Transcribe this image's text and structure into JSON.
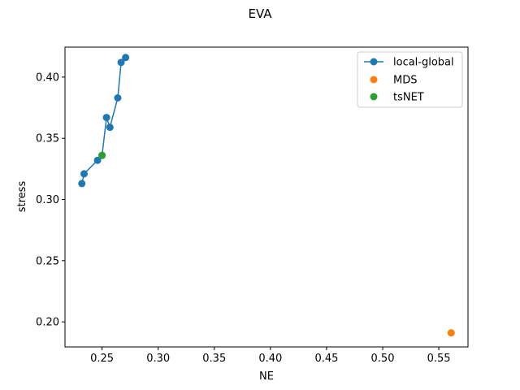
{
  "chart_data": {
    "type": "scatter",
    "title": "EVA",
    "xlabel": "NE",
    "ylabel": "stress",
    "xlim": [
      0.217,
      0.576
    ],
    "ylim": [
      0.1795,
      0.4245
    ],
    "xticks": [
      0.25,
      0.3,
      0.35,
      0.4,
      0.45,
      0.5,
      0.55
    ],
    "xtick_labels": [
      "0.25",
      "0.30",
      "0.35",
      "0.40",
      "0.45",
      "0.50",
      "0.55"
    ],
    "yticks": [
      0.2,
      0.25,
      0.3,
      0.35,
      0.4
    ],
    "ytick_labels": [
      "0.20",
      "0.25",
      "0.30",
      "0.35",
      "0.40"
    ],
    "grid": false,
    "legend_position": "top-right",
    "series": [
      {
        "name": "local-global",
        "mode": "line+markers",
        "color": "#1f77b4",
        "x": [
          0.232,
          0.234,
          0.246,
          0.25,
          0.254,
          0.257,
          0.264,
          0.267,
          0.271
        ],
        "y": [
          0.313,
          0.321,
          0.332,
          0.336,
          0.367,
          0.359,
          0.383,
          0.412,
          0.416
        ]
      },
      {
        "name": "MDS",
        "mode": "markers",
        "color": "#ff7f0e",
        "x": [
          0.561
        ],
        "y": [
          0.191
        ]
      },
      {
        "name": "tsNET",
        "mode": "markers",
        "color": "#2ca02c",
        "x": [
          0.25
        ],
        "y": [
          0.336
        ]
      }
    ]
  }
}
